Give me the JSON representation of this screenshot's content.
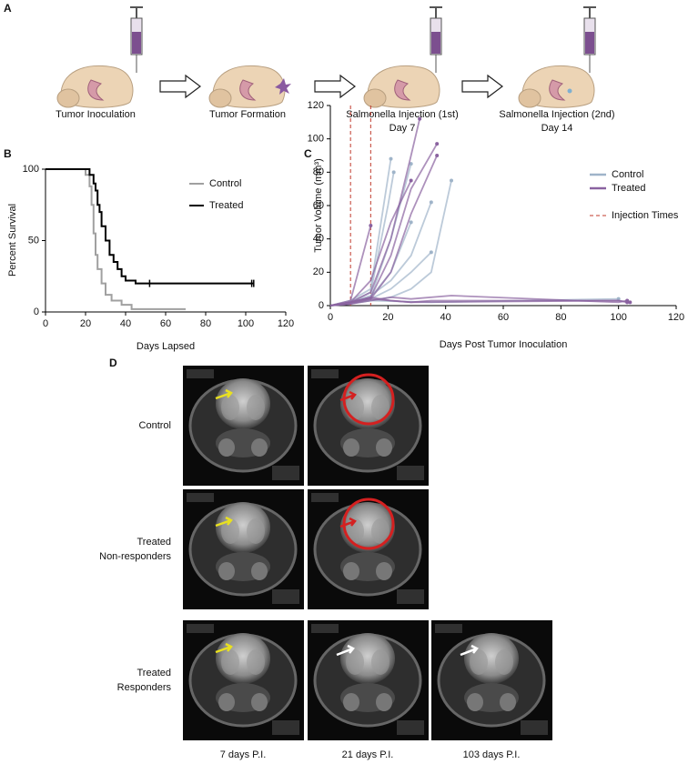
{
  "panel_a": {
    "letter": "A",
    "captions": [
      [
        "Tumor Inoculation"
      ],
      [
        "Tumor Formation"
      ],
      [
        "Salmonella Injection (1st)",
        "Day 7"
      ],
      [
        "Salmonella Injection (2nd)",
        "Day 14"
      ]
    ]
  },
  "chart_data": [
    {
      "type": "step",
      "letter": "B",
      "xlabel": "Days Lapsed",
      "ylabel": "Percent Survival",
      "xlim": [
        0,
        120
      ],
      "ylim": [
        0,
        100
      ],
      "xticks": [
        0,
        20,
        40,
        60,
        80,
        100,
        120
      ],
      "yticks": [
        0,
        50,
        100
      ],
      "series": [
        {
          "name": "Control",
          "color": "#a0a0a0",
          "x": [
            0,
            20,
            22,
            23,
            24,
            25,
            26,
            28,
            30,
            33,
            38,
            43,
            70
          ],
          "values": [
            100,
            96,
            88,
            75,
            55,
            40,
            30,
            20,
            12,
            8,
            5,
            2,
            2
          ]
        },
        {
          "name": "Treated",
          "color": "#000000",
          "x": [
            0,
            22,
            24,
            25,
            26,
            27,
            28,
            30,
            32,
            34,
            36,
            38,
            40,
            45,
            104
          ],
          "values": [
            100,
            96,
            90,
            85,
            75,
            70,
            60,
            50,
            40,
            35,
            30,
            25,
            22,
            20,
            20
          ],
          "censored": [
            52,
            103,
            104
          ]
        }
      ]
    },
    {
      "type": "line",
      "letter": "C",
      "xlabel": "Days Post Tumor Inoculation",
      "ylabel": "Tumor Volume (mm³)",
      "xlim": [
        0,
        120
      ],
      "ylim": [
        0,
        120
      ],
      "xticks": [
        0,
        20,
        40,
        60,
        80,
        100,
        120
      ],
      "yticks": [
        0,
        20,
        40,
        60,
        80,
        100,
        120
      ],
      "series": [
        {
          "name": "Control",
          "color": "#9fb4c9",
          "lines": [
            {
              "x": [
                0,
                7,
                14,
                21
              ],
              "values": [
                0,
                3,
                10,
                88
              ]
            },
            {
              "x": [
                0,
                7,
                14,
                20,
                22
              ],
              "values": [
                0,
                2,
                8,
                60,
                80
              ]
            },
            {
              "x": [
                0,
                7,
                14,
                21,
                28
              ],
              "values": [
                0,
                2,
                5,
                40,
                85
              ]
            },
            {
              "x": [
                0,
                7,
                14,
                21,
                28,
                35,
                42
              ],
              "values": [
                0,
                1,
                3,
                5,
                10,
                20,
                75
              ]
            },
            {
              "x": [
                0,
                7,
                14,
                21,
                28,
                35
              ],
              "values": [
                0,
                2,
                6,
                15,
                30,
                62
              ]
            },
            {
              "x": [
                0,
                7,
                14,
                21,
                28,
                35
              ],
              "values": [
                0,
                2,
                4,
                10,
                20,
                32
              ]
            },
            {
              "x": [
                0,
                7,
                14,
                21,
                28
              ],
              "values": [
                0,
                2,
                5,
                20,
                50
              ]
            },
            {
              "x": [
                0,
                14,
                35,
                100
              ],
              "values": [
                0,
                3,
                2,
                4
              ]
            }
          ]
        },
        {
          "name": "Treated",
          "color": "#8a62a0",
          "lines": [
            {
              "x": [
                0,
                7,
                14,
                21,
                28,
                31
              ],
              "values": [
                0,
                2,
                8,
                40,
                90,
                112
              ]
            },
            {
              "x": [
                0,
                7,
                14,
                21,
                28,
                37
              ],
              "values": [
                0,
                2,
                5,
                30,
                70,
                97
              ]
            },
            {
              "x": [
                0,
                7,
                14,
                21,
                28,
                37
              ],
              "values": [
                0,
                1,
                4,
                20,
                55,
                90
              ]
            },
            {
              "x": [
                0,
                7,
                14,
                21,
                28
              ],
              "values": [
                0,
                2,
                15,
                50,
                75
              ]
            },
            {
              "x": [
                0,
                7,
                14
              ],
              "values": [
                0,
                3,
                48
              ]
            },
            {
              "x": [
                0,
                7,
                14,
                21,
                28,
                35,
                100,
                103
              ],
              "values": [
                0,
                2,
                5,
                3,
                2,
                3,
                3,
                2
              ]
            },
            {
              "x": [
                0,
                7,
                14,
                21,
                28,
                42,
                100,
                103
              ],
              "values": [
                0,
                1,
                3,
                5,
                4,
                6,
                2,
                3
              ]
            },
            {
              "x": [
                0,
                7,
                14,
                28,
                100,
                104
              ],
              "values": [
                0,
                2,
                4,
                2,
                3,
                2
              ]
            }
          ]
        }
      ],
      "injections": {
        "name": "Injection Times",
        "color": "#c0392b",
        "x": [
          7,
          14
        ]
      }
    }
  ],
  "panel_d": {
    "letter": "D",
    "rows": [
      [
        "Control"
      ],
      [
        "Treated",
        "Non-responders"
      ],
      [
        "Treated",
        "Responders"
      ]
    ],
    "columns": [
      "7 days P.I.",
      "21 days P.I.",
      "103 days P.I."
    ]
  }
}
